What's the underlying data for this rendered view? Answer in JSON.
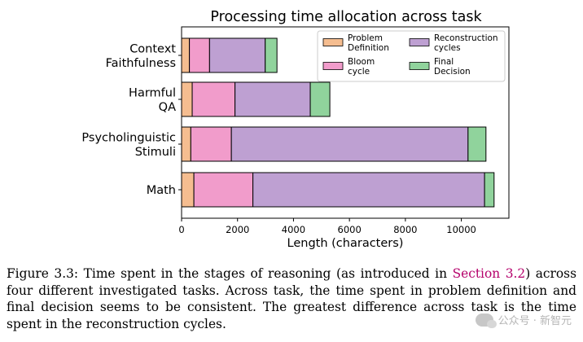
{
  "chart_data": {
    "type": "bar",
    "orientation": "horizontal",
    "stacked": true,
    "title": "Processing time allocation across task",
    "xlabel": "Length (characters)",
    "ylabel": "",
    "xlim": [
      0,
      11700
    ],
    "xticks": [
      0,
      2000,
      4000,
      6000,
      8000,
      10000
    ],
    "grid": false,
    "legend_position": "top-right",
    "categories": [
      [
        "Context",
        "Faithfulness"
      ],
      [
        "Harmful",
        "QA"
      ],
      [
        "Psycholinguistic",
        "Stimuli"
      ],
      [
        "Math"
      ]
    ],
    "series": [
      {
        "name": [
          "Problem",
          "Definition"
        ],
        "color": "#f5bd90",
        "values": [
          280,
          380,
          330,
          440
        ]
      },
      {
        "name": [
          "Bloom",
          "cycle"
        ],
        "color": "#f19ccb",
        "values": [
          720,
          1530,
          1450,
          2110
        ]
      },
      {
        "name": [
          "Reconstruction",
          "cycles"
        ],
        "color": "#bea0d2",
        "values": [
          1990,
          2690,
          8460,
          8280
        ]
      },
      {
        "name": [
          "Final",
          "Decision"
        ],
        "color": "#90d39c",
        "values": [
          420,
          700,
          640,
          340
        ]
      }
    ]
  },
  "caption": {
    "label": "Figure 3.3:",
    "text_before": "Time spent in the stages of reasoning (as introduced in",
    "ref": "Section 3.2",
    "text_after": ") across four different investigated tasks. Across task, the time spent in problem definition and final decision seems to be consistent. The greatest difference across task is the time spent in the reconstruction cycles."
  },
  "watermark": {
    "text": "公众号 · 新智元"
  }
}
